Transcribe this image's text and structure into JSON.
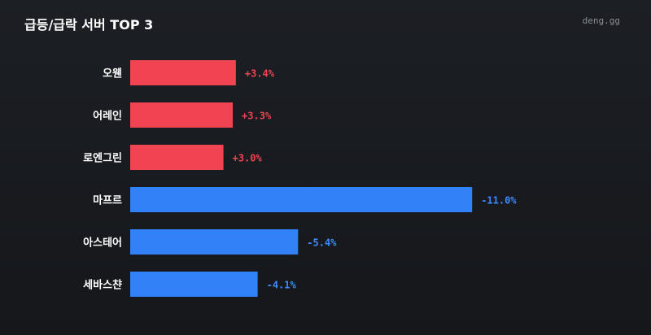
{
  "header": {
    "title": "급등/급락 서버 TOP 3",
    "brand": "deng.gg"
  },
  "colors": {
    "up": "#f04452",
    "down": "#3182f6",
    "up_text": "#f04452",
    "down_text": "#3b8cff"
  },
  "chart_data": {
    "type": "bar",
    "orientation": "horizontal",
    "title": "급등/급락 서버 TOP 3",
    "categories": [
      "오웬",
      "어레인",
      "로엔그린",
      "마프르",
      "아스테어",
      "세바스챤"
    ],
    "values": [
      3.4,
      3.3,
      3.0,
      -11.0,
      -5.4,
      -4.1
    ],
    "value_labels": [
      "+3.4%",
      "+3.3%",
      "+3.0%",
      "-11.0%",
      "-5.4%",
      "-4.1%"
    ],
    "unit": "%",
    "bar_length": "absolute value",
    "grid": false,
    "legend": "none"
  }
}
